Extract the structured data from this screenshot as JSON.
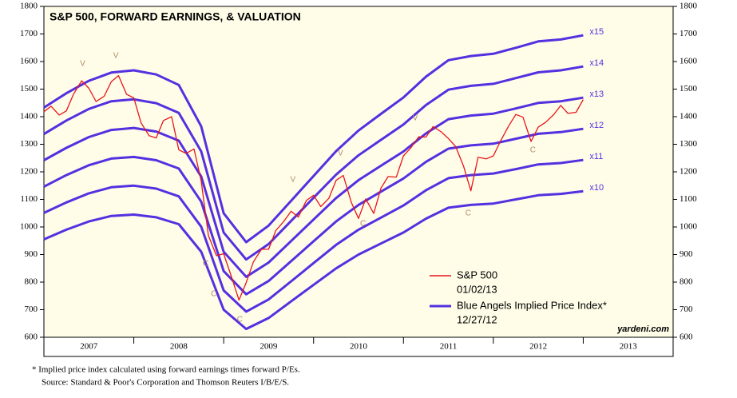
{
  "chart_data": {
    "type": "line",
    "title": "S&P 500, FORWARD EARNINGS, & VALUATION",
    "xlim": [
      2007,
      2014
    ],
    "xticks": [
      {
        "value": 2007.5,
        "label": "2007"
      },
      {
        "value": 2008.5,
        "label": "2008"
      },
      {
        "value": 2009.5,
        "label": "2009"
      },
      {
        "value": 2010.5,
        "label": "2010"
      },
      {
        "value": 2011.5,
        "label": "2011"
      },
      {
        "value": 2012.5,
        "label": "2012"
      },
      {
        "value": 2013.5,
        "label": "2013"
      }
    ],
    "ylim": [
      600,
      1800
    ],
    "yticks": [
      600,
      700,
      800,
      900,
      1000,
      1100,
      1200,
      1300,
      1400,
      1500,
      1600,
      1700,
      1800
    ],
    "series": [
      {
        "name": "S&P 500",
        "color": "#e8141b",
        "x": [
          2007.0,
          2007.08,
          2007.17,
          2007.25,
          2007.33,
          2007.42,
          2007.5,
          2007.58,
          2007.67,
          2007.75,
          2007.83,
          2007.92,
          2008.0,
          2008.08,
          2008.17,
          2008.25,
          2008.33,
          2008.42,
          2008.5,
          2008.58,
          2008.67,
          2008.75,
          2008.83,
          2008.92,
          2009.0,
          2009.08,
          2009.17,
          2009.25,
          2009.33,
          2009.42,
          2009.5,
          2009.58,
          2009.67,
          2009.75,
          2009.83,
          2009.92,
          2010.0,
          2010.08,
          2010.17,
          2010.25,
          2010.33,
          2010.42,
          2010.5,
          2010.58,
          2010.67,
          2010.75,
          2010.83,
          2010.92,
          2011.0,
          2011.08,
          2011.17,
          2011.25,
          2011.33,
          2011.42,
          2011.5,
          2011.58,
          2011.67,
          2011.75,
          2011.83,
          2011.92,
          2012.0,
          2012.08,
          2012.17,
          2012.25,
          2012.33,
          2012.42,
          2012.5,
          2012.58,
          2012.67,
          2012.75,
          2012.83,
          2012.92,
          2013.0
        ],
        "values": [
          1418,
          1438,
          1406,
          1421,
          1482,
          1530,
          1503,
          1455,
          1474,
          1527,
          1549,
          1481,
          1468,
          1378,
          1331,
          1323,
          1386,
          1400,
          1280,
          1267,
          1283,
          1166,
          969,
          896,
          903,
          826,
          735,
          798,
          873,
          919,
          919,
          987,
          1021,
          1057,
          1036,
          1096,
          1115,
          1074,
          1104,
          1169,
          1187,
          1089,
          1031,
          1102,
          1049,
          1141,
          1183,
          1181,
          1258,
          1286,
          1327,
          1326,
          1364,
          1345,
          1321,
          1292,
          1219,
          1131,
          1253,
          1247,
          1258,
          1312,
          1366,
          1408,
          1398,
          1310,
          1362,
          1379,
          1407,
          1441,
          1412,
          1416,
          1462
        ]
      },
      {
        "name": "x15",
        "color": "#5530e0",
        "x": [
          2007.0,
          2007.25,
          2007.5,
          2007.75,
          2008.0,
          2008.25,
          2008.5,
          2008.75,
          2009.0,
          2009.25,
          2009.5,
          2009.75,
          2010.0,
          2010.25,
          2010.5,
          2010.75,
          2011.0,
          2011.25,
          2011.5,
          2011.75,
          2012.0,
          2012.25,
          2012.5,
          2012.75,
          2013.0
        ],
        "values": [
          1433,
          1485,
          1530,
          1560,
          1568,
          1553,
          1515,
          1365,
          1050,
          945,
          1005,
          1095,
          1185,
          1275,
          1350,
          1410,
          1470,
          1545,
          1605,
          1620,
          1628,
          1650,
          1673,
          1680,
          1695
        ]
      },
      {
        "name": "x14",
        "color": "#5530e0",
        "x": [
          2007.0,
          2007.25,
          2007.5,
          2007.75,
          2008.0,
          2008.25,
          2008.5,
          2008.75,
          2009.0,
          2009.25,
          2009.5,
          2009.75,
          2010.0,
          2010.25,
          2010.5,
          2010.75,
          2011.0,
          2011.25,
          2011.5,
          2011.75,
          2012.0,
          2012.25,
          2012.5,
          2012.75,
          2013.0
        ],
        "values": [
          1337,
          1386,
          1428,
          1456,
          1463,
          1449,
          1414,
          1274,
          980,
          882,
          938,
          1022,
          1106,
          1190,
          1260,
          1316,
          1372,
          1442,
          1498,
          1512,
          1519,
          1540,
          1561,
          1568,
          1582
        ]
      },
      {
        "name": "x13",
        "color": "#5530e0",
        "x": [
          2007.0,
          2007.25,
          2007.5,
          2007.75,
          2008.0,
          2008.25,
          2008.5,
          2008.75,
          2009.0,
          2009.25,
          2009.5,
          2009.75,
          2010.0,
          2010.25,
          2010.5,
          2010.75,
          2011.0,
          2011.25,
          2011.5,
          2011.75,
          2012.0,
          2012.25,
          2012.5,
          2012.75,
          2013.0
        ],
        "values": [
          1242,
          1287,
          1326,
          1352,
          1359,
          1346,
          1313,
          1183,
          910,
          819,
          871,
          949,
          1027,
          1105,
          1170,
          1222,
          1274,
          1339,
          1391,
          1404,
          1411,
          1430,
          1450,
          1456,
          1469
        ]
      },
      {
        "name": "x12",
        "color": "#5530e0",
        "x": [
          2007.0,
          2007.25,
          2007.5,
          2007.75,
          2008.0,
          2008.25,
          2008.5,
          2008.75,
          2009.0,
          2009.25,
          2009.5,
          2009.75,
          2010.0,
          2010.25,
          2010.5,
          2010.75,
          2011.0,
          2011.25,
          2011.5,
          2011.75,
          2012.0,
          2012.25,
          2012.5,
          2012.75,
          2013.0
        ],
        "values": [
          1146,
          1188,
          1224,
          1248,
          1254,
          1242,
          1212,
          1092,
          840,
          756,
          804,
          876,
          948,
          1020,
          1080,
          1128,
          1176,
          1236,
          1284,
          1296,
          1302,
          1320,
          1338,
          1344,
          1356
        ]
      },
      {
        "name": "x11",
        "color": "#5530e0",
        "x": [
          2007.0,
          2007.25,
          2007.5,
          2007.75,
          2008.0,
          2008.25,
          2008.5,
          2008.75,
          2009.0,
          2009.25,
          2009.5,
          2009.75,
          2010.0,
          2010.25,
          2010.5,
          2010.75,
          2011.0,
          2011.25,
          2011.5,
          2011.75,
          2012.0,
          2012.25,
          2012.5,
          2012.75,
          2013.0
        ],
        "values": [
          1051,
          1089,
          1122,
          1144,
          1150,
          1139,
          1111,
          1001,
          770,
          693,
          737,
          803,
          869,
          935,
          990,
          1034,
          1078,
          1133,
          1177,
          1188,
          1194,
          1210,
          1227,
          1232,
          1243
        ]
      },
      {
        "name": "x10",
        "color": "#5530e0",
        "x": [
          2007.0,
          2007.25,
          2007.5,
          2007.75,
          2008.0,
          2008.25,
          2008.5,
          2008.75,
          2009.0,
          2009.25,
          2009.5,
          2009.75,
          2010.0,
          2010.25,
          2010.5,
          2010.75,
          2011.0,
          2011.25,
          2011.5,
          2011.75,
          2012.0,
          2012.25,
          2012.5,
          2012.75,
          2013.0
        ],
        "values": [
          955,
          990,
          1020,
          1040,
          1045,
          1035,
          1010,
          910,
          700,
          630,
          670,
          730,
          790,
          850,
          900,
          940,
          980,
          1030,
          1070,
          1080,
          1085,
          1100,
          1115,
          1120,
          1130
        ]
      }
    ],
    "legend": [
      {
        "label": "S&P 500",
        "date": "01/02/13",
        "color": "#e8141b"
      },
      {
        "label": "Blue Angels Implied Price Index*",
        "date": "12/27/12",
        "color": "#5530e0"
      }
    ],
    "annotations": [
      {
        "text": "V",
        "x": 2007.43,
        "y": 1591
      },
      {
        "text": "V",
        "x": 2007.8,
        "y": 1620
      },
      {
        "text": "C",
        "x": 2008.8,
        "y": 867
      },
      {
        "text": "C",
        "x": 2008.89,
        "y": 757
      },
      {
        "text": "C",
        "x": 2009.18,
        "y": 664
      },
      {
        "text": "V",
        "x": 2009.77,
        "y": 1171
      },
      {
        "text": "V",
        "x": 2010.3,
        "y": 1267
      },
      {
        "text": "C",
        "x": 2010.55,
        "y": 1012
      },
      {
        "text": "V",
        "x": 2011.13,
        "y": 1394
      },
      {
        "text": "C",
        "x": 2011.72,
        "y": 1049
      },
      {
        "text": "C",
        "x": 2012.44,
        "y": 1278
      }
    ],
    "credit": "yardeni.com",
    "footnotes": [
      "*  Implied price index calculated using forward earnings times forward P/Es.",
      "Source: Standard & Poor's Corporation and Thomson Reuters I/B/E/S."
    ]
  }
}
